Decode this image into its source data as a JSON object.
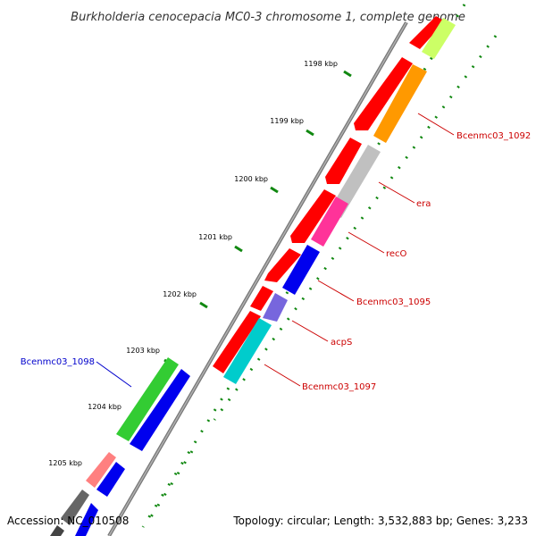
{
  "title": "Burkholderia cenocepacia MC0-3 chromosome 1, complete genome",
  "footer": {
    "accession": "Accession: NC_010508",
    "summary": "Topology: circular; Length: 3,532,883 bp; Genes: 3,233"
  },
  "ticks": [
    "1198 kbp",
    "1199 kbp",
    "1200 kbp",
    "1201 kbp",
    "1202 kbp",
    "1203 kbp",
    "1204 kbp",
    "1205 kbp"
  ],
  "gene_labels": {
    "g1092": "Bcenmc03_1092",
    "era": "era",
    "recO": "recO",
    "g1095": "Bcenmc03_1095",
    "acpS": "acpS",
    "g1097": "Bcenmc03_1097",
    "g1098": "Bcenmc03_1098"
  },
  "colors": {
    "label_red": "#cc0000",
    "label_blue": "#0000cc",
    "backbone": "#777777",
    "tick_green": "#118811"
  }
}
